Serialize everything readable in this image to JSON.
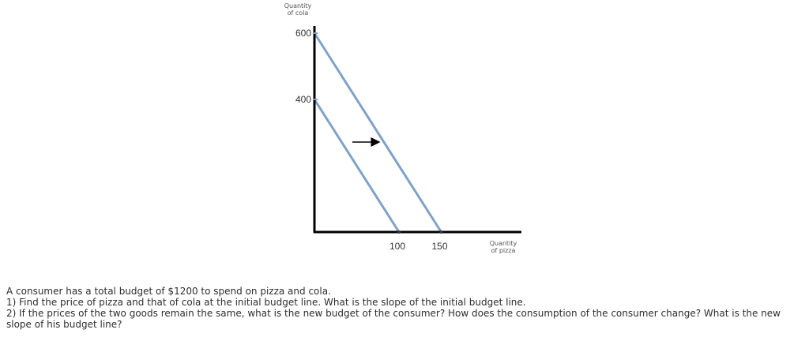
{
  "chart_data": {
    "type": "line",
    "x_axis_label": [
      "Quantity",
      "of pizza"
    ],
    "y_axis_label": [
      "Quantity",
      "of cola"
    ],
    "x_ticks": [
      100,
      150
    ],
    "y_ticks": [
      400,
      600
    ],
    "series": [
      {
        "x": [
          0,
          100
        ],
        "y": [
          400,
          0
        ]
      },
      {
        "x": [
          0,
          150
        ],
        "y": [
          600,
          0
        ]
      }
    ],
    "annotation": "arrow pointing right from the initial line to the shifted line",
    "line_color": "#7fa2c8"
  },
  "question": {
    "line1": "A consumer has a total budget of $1200 to spend on pizza and cola.",
    "line2": "1) Find the price of pizza and that of cola at the initial budget line. What is the slope of the initial budget line.",
    "line3": "2) If the prices of the two goods remain the same, what is the new budget of the consumer? How does the consumption of the consumer change? What is the new slope of his budget line?"
  }
}
